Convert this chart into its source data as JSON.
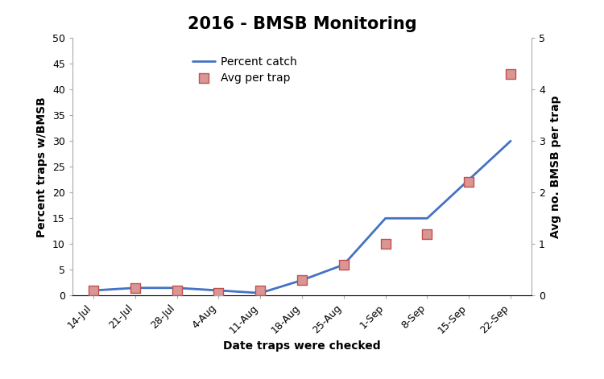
{
  "title": "2016 - BMSB Monitoring",
  "xlabel": "Date traps were checked",
  "ylabel_left": "Percent traps w/BMSB",
  "ylabel_right": "Avg no. BMSB per trap",
  "x_labels": [
    "14-Jul",
    "21-Jul",
    "28-Jul",
    "4-Aug",
    "11-Aug",
    "18-Aug",
    "25-Aug",
    "1-Sep",
    "8-Sep",
    "15-Sep",
    "22-Sep"
  ],
  "percent_catch": [
    1,
    1.5,
    1.5,
    1,
    0.5,
    3,
    6,
    15,
    15,
    22.5,
    30
  ],
  "avg_per_trap": [
    0.1,
    0.15,
    0.1,
    0.05,
    0.1,
    0.3,
    0.6,
    1.0,
    1.2,
    2.2,
    4.3
  ],
  "ylim_left": [
    0,
    50
  ],
  "ylim_right": [
    0,
    5
  ],
  "yticks_left": [
    0,
    5,
    10,
    15,
    20,
    25,
    30,
    35,
    40,
    45,
    50
  ],
  "yticks_right": [
    0,
    1,
    2,
    3,
    4,
    5
  ],
  "line_color": "#4472C4",
  "marker_facecolor": "#DA9694",
  "marker_edgecolor": "#C0504D",
  "line_width": 2.0,
  "marker_size": 9,
  "legend_labels": [
    "Percent catch",
    "Avg per trap"
  ],
  "bg_color": "#FFFFFF",
  "spine_color": "#AAAAAA",
  "title_fontsize": 15,
  "label_fontsize": 10,
  "tick_fontsize": 9,
  "legend_fontsize": 10
}
